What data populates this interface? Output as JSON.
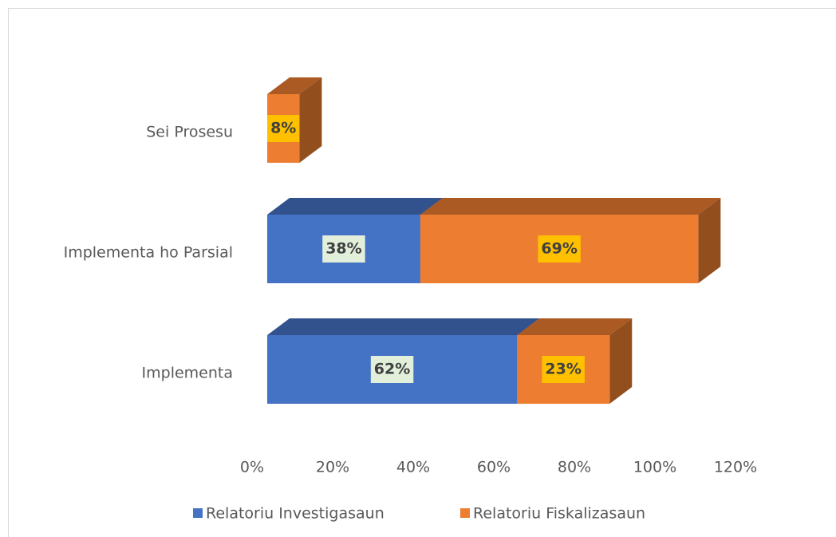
{
  "chart_data": {
    "type": "bar3d-stacked-horizontal",
    "categories": [
      "Implementa",
      "Implementa ho Parsial",
      "Sei Prosesu"
    ],
    "series": [
      {
        "name": "Relatoriu Investigasaun",
        "color": "#4472c4",
        "values": [
          62,
          38,
          null
        ],
        "value_labels": [
          "62%",
          "38%",
          null
        ]
      },
      {
        "name": "Relatoriu Fiskalizasaun",
        "color": "#ed7d31",
        "values": [
          23,
          69,
          8
        ],
        "value_labels": [
          "23%",
          "69%",
          "8%"
        ]
      }
    ],
    "xlim": [
      0,
      120
    ],
    "xticks": [
      {
        "value": 0,
        "label": "0%"
      },
      {
        "value": 20,
        "label": "20%"
      },
      {
        "value": 40,
        "label": "40%"
      },
      {
        "value": 60,
        "label": "60%"
      },
      {
        "value": 80,
        "label": "80%"
      },
      {
        "value": 100,
        "label": "100%"
      },
      {
        "value": 120,
        "label": "120%"
      }
    ],
    "legend": "bottom"
  }
}
